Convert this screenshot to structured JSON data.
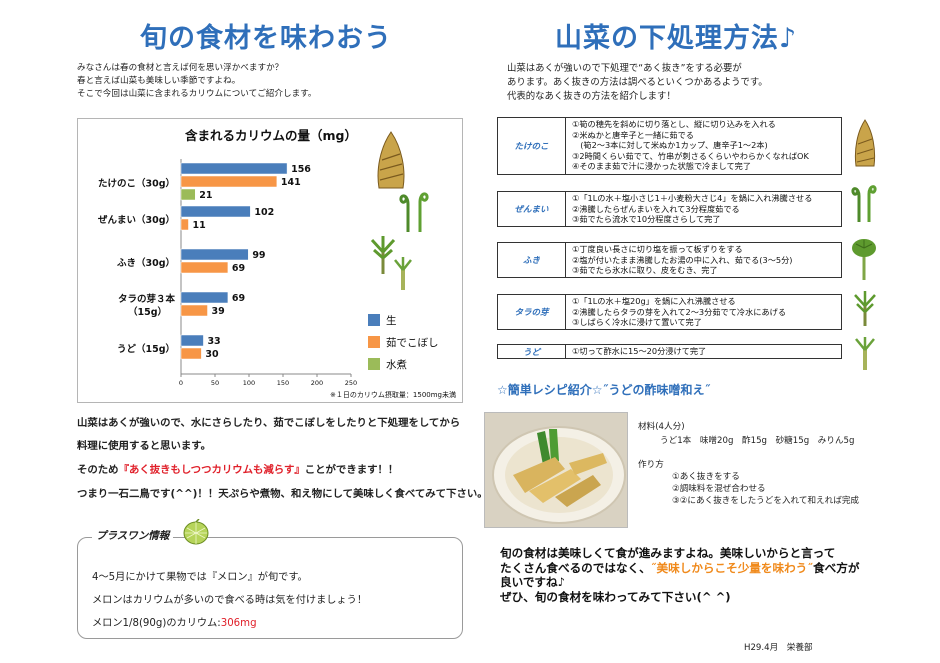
{
  "left": {
    "title": "旬の食材を味わおう",
    "intro_lines": [
      "みなさんは春の食材と言えば何を思い浮かべますか？",
      "春と言えば山菜も美味しい季節ですよね。",
      "そこで今回は山菜に含まれるカリウムについてご紹介します。"
    ],
    "body_line1": "山菜はあくが強いので、水にさらしたり、茹でこぼしをしたりと下処理をしてから",
    "body_line2": "料理に使用すると思います。",
    "body_line3_a": "そのため",
    "body_line3_red": "『あく抜きもしつつカリウムも減らす』",
    "body_line3_b": "ことができます！！",
    "body_line4": "つまり一石二鳥です(^^)！！天ぷらや煮物、和え物にして美味しく食べてみて下さい。"
  },
  "plusone": {
    "title": "プラスワン情報",
    "line1": "4～5月にかけて果物では『メロン』が旬です。",
    "line2": "メロンはカリウムが多いので食べる時は気を付けましょう！",
    "line3_a": "メロン1/8(90g)のカリウム:",
    "line3_value": "306mg"
  },
  "right": {
    "title": "山菜の下処理方法♪",
    "intro_lines": [
      "山菜はあくが強いので下処理で“あく抜き”をする必要が",
      "あります。あく抜きの方法は調べるといくつかあるようです。",
      "代表的なあく抜きの方法を紹介します！"
    ]
  },
  "methods": [
    {
      "label": "たけのこ",
      "steps": [
        "①筍の穂先を斜めに切り落とし、縦に切り込みを入れる",
        "②米ぬかと唐辛子と一緒に茹でる",
        "　(筍2～3本に対して米ぬか1カップ、唐辛子1～2本)",
        "③2時間くらい茹でて、竹串が刺さるくらいやわらかくなればOK",
        "④そのまま茹で汁に浸かった状態で冷まして完了"
      ]
    },
    {
      "label": "ぜんまい",
      "steps": [
        "①「1Lの水＋塩小さじ1＋小麦粉大さじ4」を鍋に入れ沸騰させる",
        "②沸騰したらぜんまいを入れて3分程度茹でる",
        "③茹でたら流水で10分程度さらして完了"
      ]
    },
    {
      "label": "ふき",
      "steps": [
        "①丁度良い長さに切り塩を振って板ずりをする",
        "②塩が付いたまま沸騰したお湯の中に入れ、茹でる(3～5分)",
        "③茹でたら氷水に取り、皮をむき、完了"
      ]
    },
    {
      "label": "タラの芽",
      "steps": [
        "①「1Lの水＋塩20g」を鍋に入れ沸騰させる",
        "②沸騰したらタラの芽を入れて2～3分茹でて冷水にあげる",
        "③しばらく冷水に浸けて置いて完了"
      ]
    },
    {
      "label": "うど",
      "steps": [
        "①切って酢水に15～20分浸けて完了"
      ]
    }
  ],
  "recipe": {
    "title": "☆簡単レシピ紹介☆˝うどの酢味噌和え˝",
    "ingredients_label": "材料(4人分)",
    "ingredients": "うど1本　味噌20g　酢15g　砂糖15g　みりん5g",
    "steps_label": "作り方",
    "steps": [
      "①あく抜きをする",
      "②調味料を混ぜ合わせる",
      "③②にあく抜きをしたうどを入れて和えれば完成"
    ]
  },
  "closing": {
    "line1": "旬の食材は美味しくて食が進みますよね。美味しいからと言って",
    "line2_a": "たくさん食べるのではなく、",
    "line2_orange": "˝美味しからこそ少量を味わう˝",
    "line2_b": "食べ方が",
    "line3": "良いですね♪",
    "line4": "ぜひ、旬の食材を味わってみて下さい(^ ^)"
  },
  "credit": "H29.4月　栄養部",
  "icons": [
    "bamboo-shoot-icon",
    "fiddlehead-icon",
    "butterbur-icon",
    "angelica-sprout-icon",
    "udo-icon",
    "melon-icon"
  ],
  "chart_data": {
    "type": "bar",
    "title": "含まれるカリウムの量（mg）",
    "categories": [
      "たけのこ（30g）",
      "ぜんまい（30g）",
      "ふき（30g）",
      "タラの芽３本（15g）",
      "うど（15g）"
    ],
    "series": [
      {
        "name": "生",
        "color": "#4a7ebb",
        "values": [
          156,
          102,
          99,
          69,
          33
        ]
      },
      {
        "name": "茹でこぼし",
        "color": "#f79646",
        "values": [
          141,
          11,
          69,
          39,
          30
        ]
      },
      {
        "name": "水煮",
        "color": "#9bbb59",
        "values": [
          21,
          null,
          null,
          null,
          null
        ]
      }
    ],
    "xlim": [
      0,
      250
    ],
    "xticks": [
      0,
      50,
      100,
      150,
      200,
      250
    ],
    "footnote": "※１日のカリウム摂取量：1500mg未満",
    "legend": "right"
  }
}
